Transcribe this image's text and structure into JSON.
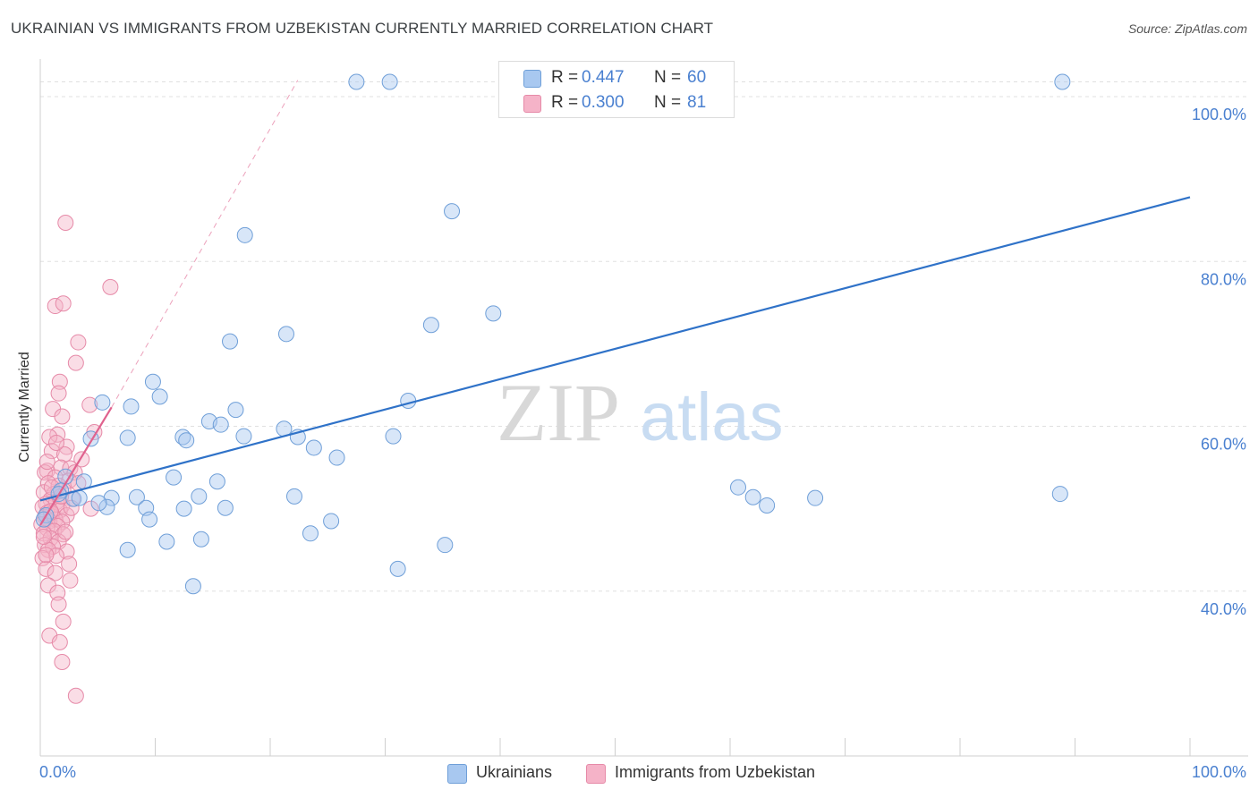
{
  "title": "UKRAINIAN VS IMMIGRANTS FROM UZBEKISTAN CURRENTLY MARRIED CORRELATION CHART",
  "source": "Source: ZipAtlas.com",
  "watermark": {
    "zip": "ZIP",
    "atlas": "atlas"
  },
  "legend": {
    "rows": [
      {
        "r_label": "R =",
        "r_value": "0.447",
        "n_label": "N =",
        "n_value": "60"
      },
      {
        "r_label": "R =",
        "r_value": "0.300",
        "n_label": "N =",
        "n_value": "81"
      }
    ]
  },
  "bottom_legend": [
    "Ukrainians",
    "Immigrants from Uzbekistan"
  ],
  "colors": {
    "blue_fill": "#a8c8f0",
    "blue_stroke": "#6f9fd8",
    "blue_line": "#2f72c8",
    "pink_fill": "#f5b3c8",
    "pink_stroke": "#e68aa8",
    "pink_line": "#e0628e",
    "axis_text": "#4a80d0",
    "grid": "#e0e0e0"
  },
  "chart_data": {
    "type": "scatter",
    "title": "UKRAINIAN VS IMMIGRANTS FROM UZBEKISTAN CURRENTLY MARRIED CORRELATION CHART",
    "xlabel": "",
    "ylabel": "Currently Married",
    "xlim": [
      0,
      100
    ],
    "ylim": [
      20,
      105
    ],
    "x_tick_labels": [
      "0.0%",
      "100.0%"
    ],
    "y_ticks": [
      40,
      60,
      80,
      100
    ],
    "y_tick_labels": [
      "40.0%",
      "60.0%",
      "80.0%",
      "100.0%"
    ],
    "grid": true,
    "series": [
      {
        "name": "Ukrainians",
        "r": 0.447,
        "n": 60,
        "trend": {
          "x": [
            0,
            100
          ],
          "y": [
            51.0,
            87.8
          ]
        },
        "points": [
          [
            27.5,
            101.8
          ],
          [
            30.4,
            101.8
          ],
          [
            88.9,
            101.8
          ],
          [
            35.8,
            86.1
          ],
          [
            17.8,
            83.2
          ],
          [
            39.4,
            73.7
          ],
          [
            34.0,
            72.3
          ],
          [
            16.5,
            70.3
          ],
          [
            21.4,
            71.2
          ],
          [
            9.8,
            65.4
          ],
          [
            10.4,
            63.6
          ],
          [
            5.4,
            62.9
          ],
          [
            7.9,
            62.4
          ],
          [
            32.0,
            63.1
          ],
          [
            17.0,
            62.0
          ],
          [
            14.7,
            60.6
          ],
          [
            15.7,
            60.2
          ],
          [
            21.2,
            59.7
          ],
          [
            7.6,
            58.6
          ],
          [
            12.4,
            58.7
          ],
          [
            22.4,
            58.7
          ],
          [
            12.7,
            58.3
          ],
          [
            4.4,
            58.5
          ],
          [
            17.7,
            58.8
          ],
          [
            30.7,
            58.8
          ],
          [
            23.8,
            57.4
          ],
          [
            25.8,
            56.2
          ],
          [
            2.2,
            53.9
          ],
          [
            3.8,
            53.3
          ],
          [
            11.6,
            53.8
          ],
          [
            15.4,
            53.3
          ],
          [
            1.8,
            52.2
          ],
          [
            2.9,
            51.2
          ],
          [
            6.2,
            51.3
          ],
          [
            8.4,
            51.4
          ],
          [
            13.8,
            51.5
          ],
          [
            22.1,
            51.5
          ],
          [
            60.7,
            52.6
          ],
          [
            1.6,
            51.8
          ],
          [
            3.4,
            51.3
          ],
          [
            5.8,
            50.2
          ],
          [
            9.2,
            50.1
          ],
          [
            12.5,
            50.0
          ],
          [
            16.1,
            50.1
          ],
          [
            5.1,
            50.7
          ],
          [
            62.0,
            51.4
          ],
          [
            63.2,
            50.4
          ],
          [
            67.4,
            51.3
          ],
          [
            88.7,
            51.8
          ],
          [
            0.5,
            49.2
          ],
          [
            9.5,
            48.7
          ],
          [
            25.3,
            48.5
          ],
          [
            23.5,
            47.0
          ],
          [
            11.0,
            46.0
          ],
          [
            14.0,
            46.3
          ],
          [
            7.6,
            45.0
          ],
          [
            35.2,
            45.6
          ],
          [
            13.3,
            40.6
          ],
          [
            31.1,
            42.7
          ],
          [
            0.3,
            48.7
          ]
        ]
      },
      {
        "name": "Immigrants from Uzbekistan",
        "r": 0.3,
        "n": 81,
        "trend": {
          "x": [
            0,
            6.2
          ],
          "y": [
            48.0,
            62.3
          ]
        },
        "trend_dashed": {
          "x": [
            6.2,
            22.4
          ],
          "y": [
            62.3,
            102.0
          ]
        },
        "points": [
          [
            2.2,
            84.7
          ],
          [
            6.1,
            76.9
          ],
          [
            1.3,
            74.6
          ],
          [
            2.0,
            74.9
          ],
          [
            3.3,
            70.2
          ],
          [
            3.1,
            67.7
          ],
          [
            1.7,
            65.4
          ],
          [
            1.6,
            64.0
          ],
          [
            4.3,
            62.6
          ],
          [
            1.1,
            62.1
          ],
          [
            1.9,
            61.2
          ],
          [
            4.7,
            59.3
          ],
          [
            1.5,
            59.0
          ],
          [
            0.8,
            58.7
          ],
          [
            2.3,
            57.5
          ],
          [
            1.0,
            57.0
          ],
          [
            2.1,
            56.6
          ],
          [
            3.6,
            56.0
          ],
          [
            1.8,
            55.0
          ],
          [
            2.6,
            54.9
          ],
          [
            0.6,
            54.6
          ],
          [
            3.0,
            54.4
          ],
          [
            0.4,
            54.4
          ],
          [
            1.3,
            53.8
          ],
          [
            2.5,
            53.4
          ],
          [
            0.7,
            53.1
          ],
          [
            1.6,
            52.8
          ],
          [
            2.0,
            52.3
          ],
          [
            0.3,
            52.0
          ],
          [
            1.2,
            51.8
          ],
          [
            2.8,
            51.2
          ],
          [
            0.9,
            51.1
          ],
          [
            1.4,
            50.8
          ],
          [
            0.5,
            50.6
          ],
          [
            1.9,
            50.4
          ],
          [
            0.2,
            50.2
          ],
          [
            4.4,
            50.0
          ],
          [
            1.7,
            49.8
          ],
          [
            0.6,
            49.5
          ],
          [
            1.0,
            49.4
          ],
          [
            2.3,
            49.2
          ],
          [
            0.4,
            49.0
          ],
          [
            1.3,
            48.7
          ],
          [
            0.8,
            48.5
          ],
          [
            1.9,
            48.4
          ],
          [
            0.1,
            48.1
          ],
          [
            1.5,
            47.9
          ],
          [
            0.6,
            47.6
          ],
          [
            1.2,
            47.3
          ],
          [
            0.3,
            47.0
          ],
          [
            2.0,
            46.9
          ],
          [
            0.9,
            46.4
          ],
          [
            1.6,
            46.0
          ],
          [
            0.4,
            45.6
          ],
          [
            1.1,
            45.4
          ],
          [
            0.7,
            45.0
          ],
          [
            2.3,
            44.8
          ],
          [
            1.4,
            44.3
          ],
          [
            0.2,
            44.0
          ],
          [
            2.5,
            43.3
          ],
          [
            0.5,
            42.7
          ],
          [
            1.3,
            42.2
          ],
          [
            2.6,
            41.3
          ],
          [
            0.7,
            40.7
          ],
          [
            1.5,
            39.8
          ],
          [
            1.6,
            38.4
          ],
          [
            2.0,
            36.3
          ],
          [
            0.8,
            34.6
          ],
          [
            1.7,
            33.8
          ],
          [
            1.9,
            31.4
          ],
          [
            3.1,
            27.3
          ],
          [
            0.9,
            49.7
          ],
          [
            2.2,
            47.2
          ],
          [
            1.0,
            52.6
          ],
          [
            3.3,
            53.1
          ],
          [
            0.3,
            46.6
          ],
          [
            1.8,
            51.5
          ],
          [
            2.7,
            50.1
          ],
          [
            0.6,
            55.7
          ],
          [
            1.4,
            58.0
          ],
          [
            0.5,
            44.4
          ]
        ]
      }
    ]
  }
}
